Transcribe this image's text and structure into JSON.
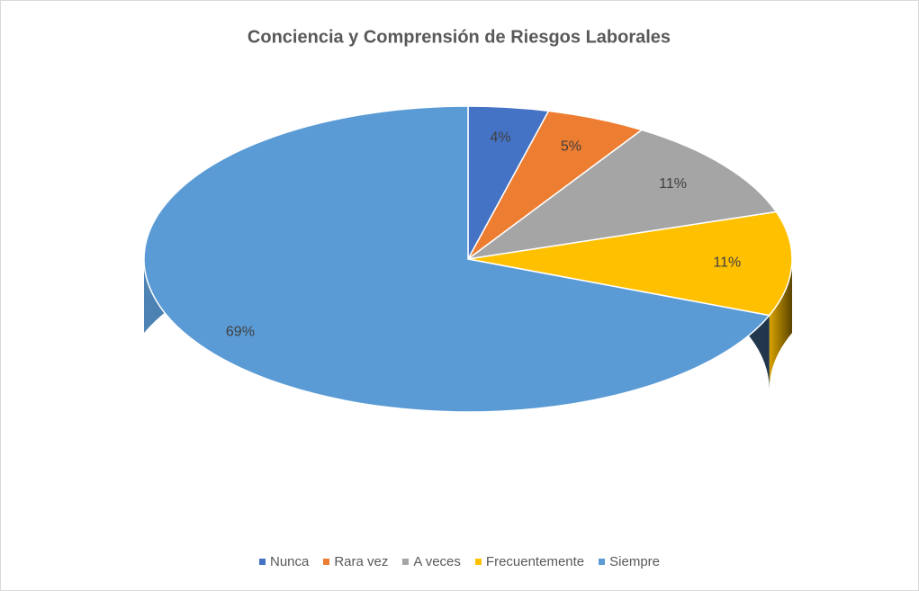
{
  "chart_data": {
    "type": "pie",
    "title": "Conciencia y Comprensión de Riesgos Laborales",
    "categories": [
      "Nunca",
      "Rara vez",
      "A veces",
      "Frecuentemente",
      "Siempre"
    ],
    "values": [
      4,
      5,
      11,
      11,
      69
    ],
    "value_labels": [
      "4%",
      "5%",
      "11%",
      "11%",
      "69%"
    ],
    "colors": [
      "#4472c4",
      "#ed7d31",
      "#a5a5a5",
      "#ffc000",
      "#5b9bd5"
    ],
    "legend": "bottom"
  }
}
